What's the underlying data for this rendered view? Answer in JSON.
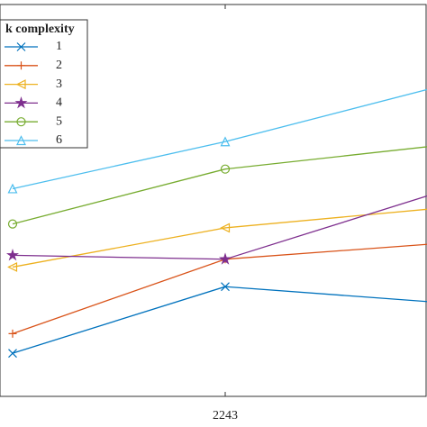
{
  "chart_data": {
    "type": "line",
    "categories": [
      null,
      "2243",
      null
    ],
    "legend_title": "k complexity",
    "legend_loc": "upper left",
    "ylim": [
      0,
      100
    ],
    "series": [
      {
        "name": "1",
        "color": "#0072bd",
        "marker": "x",
        "values": [
          11,
          28,
          24
        ]
      },
      {
        "name": "2",
        "color": "#d95319",
        "marker": "plus",
        "values": [
          16,
          35,
          39
        ]
      },
      {
        "name": "3",
        "color": "#edb120",
        "marker": "triangle-left",
        "values": [
          33,
          43,
          48
        ]
      },
      {
        "name": "4",
        "color": "#7e2f8e",
        "marker": "star",
        "values": [
          36,
          35,
          52
        ]
      },
      {
        "name": "5",
        "color": "#77ac30",
        "marker": "circle",
        "values": [
          44,
          58,
          64
        ]
      },
      {
        "name": "6",
        "color": "#4dbeee",
        "marker": "triangle-up",
        "values": [
          53,
          65,
          79
        ]
      }
    ]
  }
}
